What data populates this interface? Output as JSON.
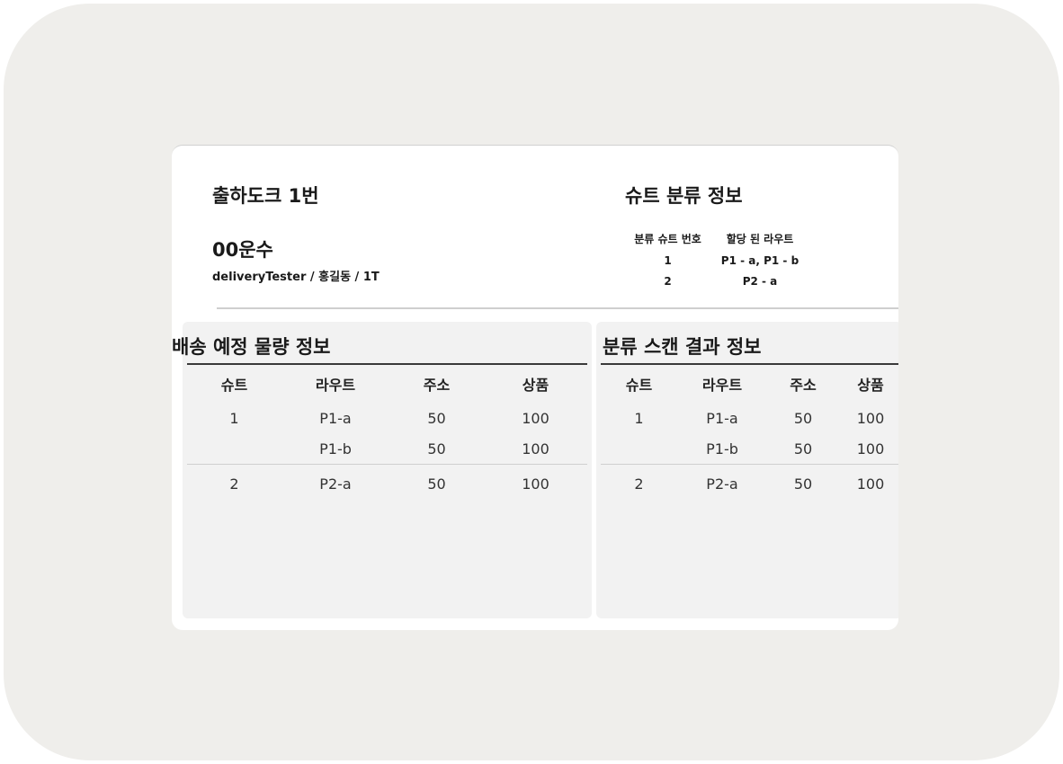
{
  "dock": {
    "title": "출하도크 1번",
    "carrier": "00운수",
    "user_info": "deliveryTester / 홍길동 / 1T"
  },
  "chute_info": {
    "title": "슈트 분류 정보",
    "headers": [
      "분류 슈트 번호",
      "할당 된 라우트"
    ],
    "rows": [
      {
        "chute": "1",
        "routes": "P1 - a, P1 - b"
      },
      {
        "chute": "2",
        "routes": "P2 - a"
      }
    ]
  },
  "planned": {
    "title": "배송 예정 물량 정보",
    "headers": [
      "슈트",
      "라우트",
      "주소",
      "상품"
    ],
    "rows": [
      [
        "1",
        "P1-a",
        "50",
        "100"
      ],
      [
        "",
        "P1-b",
        "50",
        "100"
      ],
      [
        "2",
        "P2-a",
        "50",
        "100"
      ]
    ]
  },
  "scan": {
    "title": "분류 스캔 결과 정보",
    "headers": [
      "슈트",
      "라우트",
      "주소",
      "상품"
    ],
    "rows": [
      [
        "1",
        "P1-a",
        "50",
        "100"
      ],
      [
        "",
        "P1-b",
        "50",
        "100"
      ],
      [
        "2",
        "P2-a",
        "50",
        "100"
      ]
    ]
  }
}
